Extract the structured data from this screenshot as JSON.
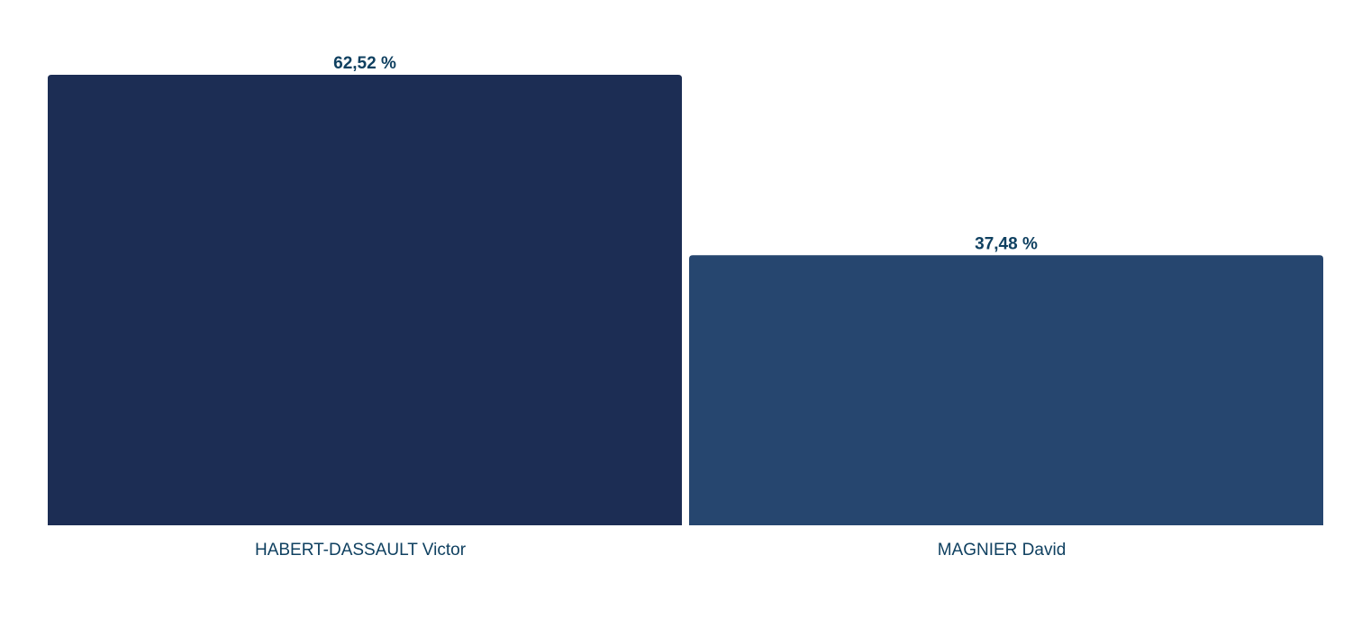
{
  "chart_data": {
    "type": "bar",
    "categories": [
      "HABERT-DASSAULT Victor",
      "MAGNIER David"
    ],
    "values": [
      62.52,
      37.48
    ],
    "value_labels": [
      "62,52 %",
      "37,48 %"
    ],
    "title": "",
    "xlabel": "",
    "ylabel": "",
    "ylim": [
      0,
      62.52
    ],
    "grid": false,
    "legend": "none",
    "colors": [
      "#1c2d54",
      "#26466f"
    ],
    "label_color": "#0f4060"
  }
}
